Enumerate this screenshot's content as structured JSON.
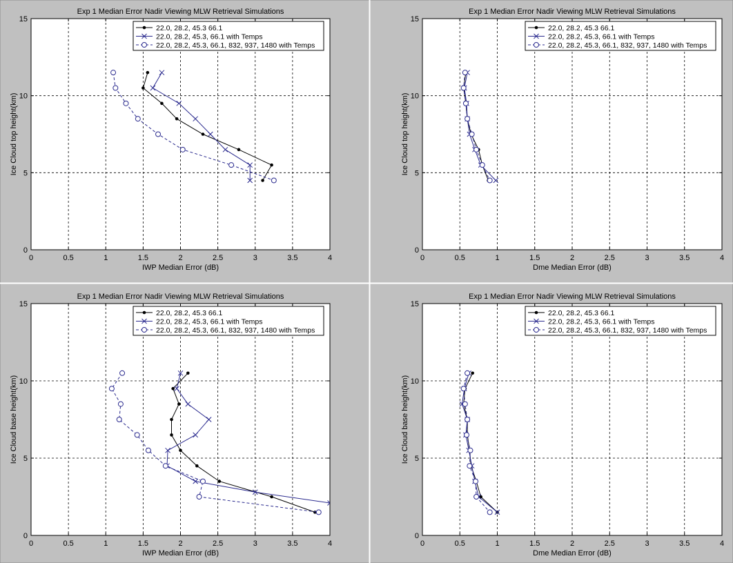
{
  "chart_data": [
    {
      "type": "line",
      "title": "Exp 1 Median Error Nadir Viewing MLW Retrieval Simulations",
      "xlabel": "IWP Median Error (dB)",
      "ylabel": "Ice Cloud top height(km)",
      "xlim": [
        0,
        4
      ],
      "ylim": [
        0,
        15
      ],
      "xticks": [
        "0",
        "0.5",
        "1",
        "1.5",
        "2",
        "2.5",
        "3",
        "3.5",
        "4"
      ],
      "yticks": [
        "0",
        "5",
        "10",
        "15"
      ],
      "grid": true,
      "legend_position": "top-right",
      "series": [
        {
          "name": "22.0, 28.2, 45.3 66.1",
          "color": "#000000",
          "marker": "dot",
          "dash": "solid",
          "points": [
            [
              1.56,
              11.5
            ],
            [
              1.5,
              10.5
            ],
            [
              1.75,
              9.5
            ],
            [
              1.95,
              8.5
            ],
            [
              2.3,
              7.5
            ],
            [
              2.78,
              6.5
            ],
            [
              3.22,
              5.5
            ],
            [
              3.1,
              4.5
            ]
          ]
        },
        {
          "name": "22.0, 28.2, 45.3, 66.1 with Temps",
          "color": "#2a2a8e",
          "marker": "x",
          "dash": "solid",
          "points": [
            [
              1.75,
              11.5
            ],
            [
              1.63,
              10.5
            ],
            [
              1.98,
              9.5
            ],
            [
              2.2,
              8.5
            ],
            [
              2.4,
              7.5
            ],
            [
              2.6,
              6.5
            ],
            [
              2.93,
              5.5
            ],
            [
              2.93,
              4.5
            ]
          ]
        },
        {
          "name": "22.0, 28.2, 45.3, 66.1, 832, 937, 1480 with Temps",
          "color": "#2a2a8e",
          "marker": "o",
          "dash": "dashed",
          "points": [
            [
              1.1,
              11.5
            ],
            [
              1.13,
              10.5
            ],
            [
              1.27,
              9.5
            ],
            [
              1.43,
              8.5
            ],
            [
              1.7,
              7.5
            ],
            [
              2.03,
              6.5
            ],
            [
              2.68,
              5.5
            ],
            [
              3.25,
              4.5
            ]
          ]
        }
      ]
    },
    {
      "type": "line",
      "title": "Exp 1 Median Error Nadir Viewing MLW Retrieval Simulations",
      "xlabel": "Dme Median Error (dB)",
      "ylabel": "Ice Cloud top height(km)",
      "xlim": [
        0,
        4
      ],
      "ylim": [
        0,
        15
      ],
      "xticks": [
        "0",
        "0.5",
        "1",
        "1.5",
        "2",
        "2.5",
        "3",
        "3.5",
        "4"
      ],
      "yticks": [
        "0",
        "5",
        "10",
        "15"
      ],
      "grid": true,
      "legend_position": "top-right",
      "series": [
        {
          "name": "22.0, 28.2, 45.3 66.1",
          "color": "#000000",
          "marker": "dot",
          "dash": "solid",
          "points": [
            [
              0.58,
              11.5
            ],
            [
              0.55,
              10.5
            ],
            [
              0.58,
              9.5
            ],
            [
              0.6,
              8.5
            ],
            [
              0.65,
              7.5
            ],
            [
              0.75,
              6.5
            ],
            [
              0.8,
              5.5
            ],
            [
              0.88,
              4.5
            ]
          ]
        },
        {
          "name": "22.0, 28.2, 45.3, 66.1 with Temps",
          "color": "#2a2a8e",
          "marker": "x",
          "dash": "solid",
          "points": [
            [
              0.6,
              11.5
            ],
            [
              0.56,
              10.5
            ],
            [
              0.59,
              9.5
            ],
            [
              0.6,
              8.5
            ],
            [
              0.63,
              7.5
            ],
            [
              0.7,
              6.5
            ],
            [
              0.78,
              5.5
            ],
            [
              0.98,
              4.5
            ]
          ]
        },
        {
          "name": "22.0, 28.2, 45.3, 66.1, 832, 937, 1480 with Temps",
          "color": "#2a2a8e",
          "marker": "o",
          "dash": "dashed",
          "points": [
            [
              0.57,
              11.5
            ],
            [
              0.55,
              10.5
            ],
            [
              0.58,
              9.5
            ],
            [
              0.6,
              8.5
            ],
            [
              0.66,
              7.5
            ],
            [
              0.72,
              6.5
            ],
            [
              0.8,
              5.5
            ],
            [
              0.9,
              4.5
            ]
          ]
        }
      ]
    },
    {
      "type": "line",
      "title": "Exp 1 Median Error Nadir Viewing MLW Retrieval Simulations",
      "xlabel": "IWP Median Error (dB)",
      "ylabel": "Ice Cloud base height(km)",
      "xlim": [
        0,
        4
      ],
      "ylim": [
        0,
        15
      ],
      "xticks": [
        "0",
        "0.5",
        "1",
        "1.5",
        "2",
        "2.5",
        "3",
        "3.5",
        "4"
      ],
      "yticks": [
        "0",
        "5",
        "10",
        "15"
      ],
      "grid": true,
      "legend_position": "top-right",
      "series": [
        {
          "name": "22.0, 28.2, 45.3 66.1",
          "color": "#000000",
          "marker": "dot",
          "dash": "solid",
          "points": [
            [
              2.1,
              10.5
            ],
            [
              1.9,
              9.5
            ],
            [
              1.98,
              8.5
            ],
            [
              1.88,
              7.5
            ],
            [
              1.88,
              6.5
            ],
            [
              2.0,
              5.5
            ],
            [
              2.22,
              4.5
            ],
            [
              2.52,
              3.5
            ],
            [
              3.22,
              2.5
            ],
            [
              3.8,
              1.5
            ]
          ]
        },
        {
          "name": "22.0, 28.2, 45.3, 66.1 with Temps",
          "color": "#2a2a8e",
          "marker": "x",
          "dash": "solid",
          "points": [
            [
              2.0,
              10.5
            ],
            [
              1.95,
              9.5
            ],
            [
              2.1,
              8.5
            ],
            [
              2.38,
              7.5
            ],
            [
              2.2,
              6.5
            ],
            [
              1.83,
              5.5
            ],
            [
              1.82,
              4.5
            ],
            [
              2.2,
              3.5
            ],
            [
              3.0,
              2.8
            ],
            [
              4.0,
              2.1
            ]
          ]
        },
        {
          "name": "22.0, 28.2, 45.3, 66.1, 832, 937, 1480 with Temps",
          "color": "#2a2a8e",
          "marker": "o",
          "dash": "dashed",
          "points": [
            [
              1.22,
              10.5
            ],
            [
              1.08,
              9.5
            ],
            [
              1.2,
              8.5
            ],
            [
              1.18,
              7.5
            ],
            [
              1.42,
              6.5
            ],
            [
              1.57,
              5.5
            ],
            [
              1.8,
              4.5
            ],
            [
              2.3,
              3.5
            ],
            [
              2.25,
              2.5
            ],
            [
              3.85,
              1.5
            ]
          ]
        }
      ]
    },
    {
      "type": "line",
      "title": "Exp 1 Median Error Nadir Viewing MLW Retrieval Simulations",
      "xlabel": "Dme Median Error (dB)",
      "ylabel": "Ice Cloud base height(km)",
      "xlim": [
        0,
        4
      ],
      "ylim": [
        0,
        15
      ],
      "xticks": [
        "0",
        "0.5",
        "1",
        "1.5",
        "2",
        "2.5",
        "3",
        "3.5",
        "4"
      ],
      "yticks": [
        "0",
        "5",
        "10",
        "15"
      ],
      "grid": true,
      "legend_position": "top-right",
      "series": [
        {
          "name": "22.0, 28.2, 45.3 66.1",
          "color": "#000000",
          "marker": "dot",
          "dash": "solid",
          "points": [
            [
              0.67,
              10.5
            ],
            [
              0.57,
              9.5
            ],
            [
              0.55,
              8.5
            ],
            [
              0.6,
              7.5
            ],
            [
              0.6,
              6.5
            ],
            [
              0.63,
              5.5
            ],
            [
              0.65,
              4.5
            ],
            [
              0.72,
              3.5
            ],
            [
              0.78,
              2.5
            ],
            [
              1.0,
              1.5
            ]
          ]
        },
        {
          "name": "22.0, 28.2, 45.3, 66.1 with Temps",
          "color": "#2a2a8e",
          "marker": "x",
          "dash": "solid",
          "points": [
            [
              0.62,
              10.5
            ],
            [
              0.56,
              9.5
            ],
            [
              0.53,
              8.5
            ],
            [
              0.6,
              7.5
            ],
            [
              0.58,
              6.5
            ],
            [
              0.62,
              5.5
            ],
            [
              0.66,
              4.5
            ],
            [
              0.7,
              3.5
            ],
            [
              0.75,
              2.5
            ],
            [
              1.0,
              1.5
            ]
          ]
        },
        {
          "name": "22.0, 28.2, 45.3, 66.1, 832, 937, 1480 with Temps",
          "color": "#2a2a8e",
          "marker": "o",
          "dash": "dashed",
          "points": [
            [
              0.6,
              10.5
            ],
            [
              0.55,
              9.5
            ],
            [
              0.57,
              8.5
            ],
            [
              0.6,
              7.5
            ],
            [
              0.59,
              6.5
            ],
            [
              0.64,
              5.5
            ],
            [
              0.63,
              4.5
            ],
            [
              0.71,
              3.5
            ],
            [
              0.72,
              2.5
            ],
            [
              0.9,
              1.5
            ]
          ]
        }
      ]
    }
  ]
}
